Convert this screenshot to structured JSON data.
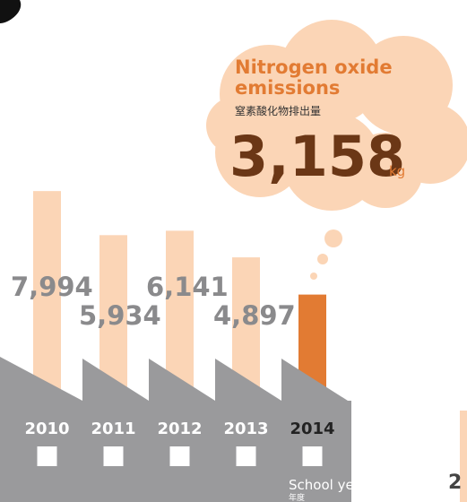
{
  "chart_data": {
    "type": "bar",
    "title": "Nitrogen oxide emissions",
    "subtitle": "窒素酸化物排出量",
    "unit": "kg",
    "x_label": "School year",
    "x_label_sub": "年度",
    "categories": [
      "2010",
      "2011",
      "2012",
      "2013",
      "2014"
    ],
    "values": [
      7994,
      5934,
      6141,
      4897,
      3158
    ],
    "value_labels": [
      "7,994",
      "5,934",
      "6,141",
      "4,897",
      "3,158"
    ],
    "colors": [
      "#fbd5b6",
      "#fbd5b6",
      "#fbd5b6",
      "#fbd5b6",
      "#e27b33"
    ],
    "ylim": [
      0,
      8000
    ],
    "cut_off_text": "2"
  }
}
